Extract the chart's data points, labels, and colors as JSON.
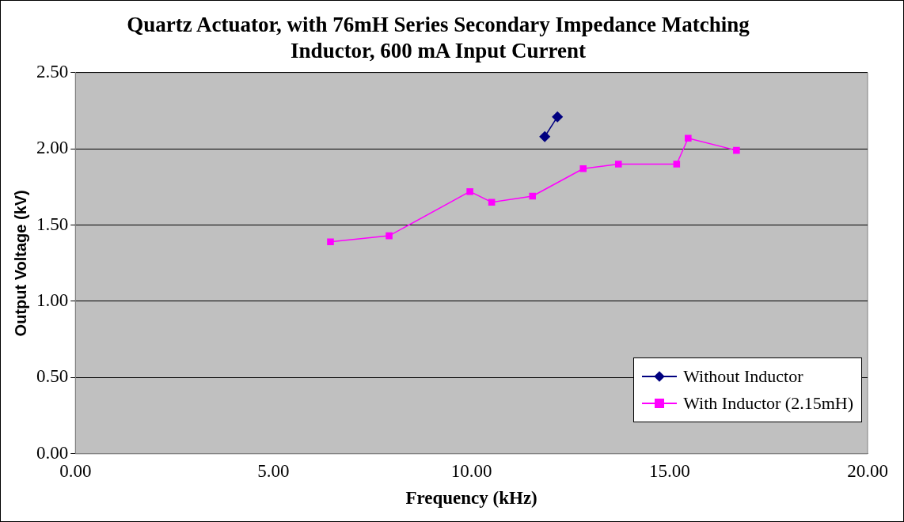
{
  "chart_data": {
    "type": "line",
    "title": "Quartz Actuator, with 76mH Series Secondary Impedance Matching Inductor, 600 mA Input Current",
    "xlabel": "Frequency (kHz)",
    "ylabel": "Output Voltage (kV)",
    "xlim": [
      0,
      20
    ],
    "xticks": [
      {
        "value": 0,
        "label": "0.00"
      },
      {
        "value": 5,
        "label": "5.00"
      },
      {
        "value": 10,
        "label": "10.00"
      },
      {
        "value": 15,
        "label": "15.00"
      },
      {
        "value": 20,
        "label": "20.00"
      }
    ],
    "ylim": [
      0,
      2.5
    ],
    "yticks": [
      {
        "value": 0,
        "label": "0.00"
      },
      {
        "value": 0.5,
        "label": "0.50"
      },
      {
        "value": 1,
        "label": "1.00"
      },
      {
        "value": 1.5,
        "label": "1.50"
      },
      {
        "value": 2,
        "label": "2.00"
      },
      {
        "value": 2.5,
        "label": "2.50"
      }
    ],
    "grid": "y",
    "legend": "bottom right",
    "series": [
      {
        "name": "Without Inductor",
        "color": "#000080",
        "marker": "diamond",
        "x": [
          11.85,
          12.17
        ],
        "values": [
          2.08,
          2.21
        ]
      },
      {
        "name": "With Inductor (2.15mH)",
        "color": "#ff00ff",
        "marker": "square",
        "x": [
          6.44,
          7.92,
          9.96,
          10.51,
          11.54,
          12.82,
          13.71,
          15.18,
          15.47,
          16.69
        ],
        "values": [
          1.39,
          1.43,
          1.72,
          1.65,
          1.69,
          1.87,
          1.9,
          1.9,
          2.07,
          1.99
        ]
      }
    ]
  }
}
